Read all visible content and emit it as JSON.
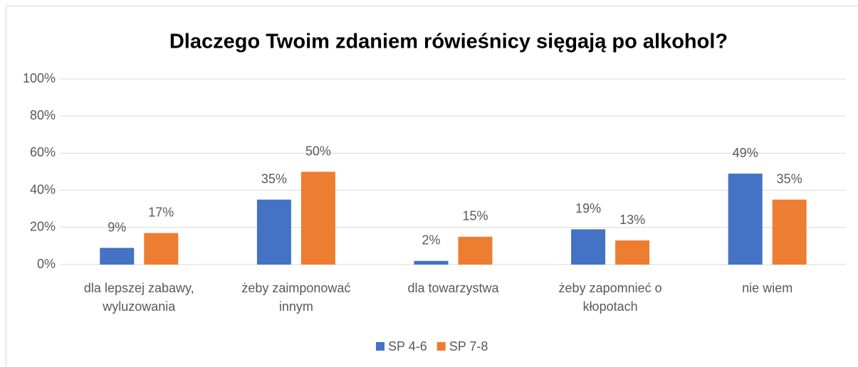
{
  "chart_data": {
    "type": "bar",
    "title": "Dlaczego Twoim zdaniem rówieśnicy sięgają po alkohol?",
    "categories": [
      "dla lepszej zabawy, wyluzowania",
      "żeby zaimponować innym",
      "dla towarzystwa",
      "żeby zapomnieć o kłopotach",
      "nie wiem"
    ],
    "series": [
      {
        "name": "SP 4-6",
        "color": "#4472c4",
        "values": [
          9,
          35,
          2,
          19,
          49
        ],
        "value_labels": [
          "9%",
          "35%",
          "2%",
          "19%",
          "49%"
        ]
      },
      {
        "name": "SP 7-8",
        "color": "#ed7d31",
        "values": [
          17,
          50,
          15,
          13,
          35
        ],
        "value_labels": [
          "17%",
          "50%",
          "15%",
          "13%",
          "35%"
        ]
      }
    ],
    "ylim": [
      0,
      100
    ],
    "yticks": [
      {
        "value": 0,
        "label": "0%"
      },
      {
        "value": 20,
        "label": "20%"
      },
      {
        "value": 40,
        "label": "40%"
      },
      {
        "value": 60,
        "label": "60%"
      },
      {
        "value": 80,
        "label": "80%"
      },
      {
        "value": 100,
        "label": "100%"
      }
    ],
    "grid": true,
    "legend": "bottom"
  }
}
